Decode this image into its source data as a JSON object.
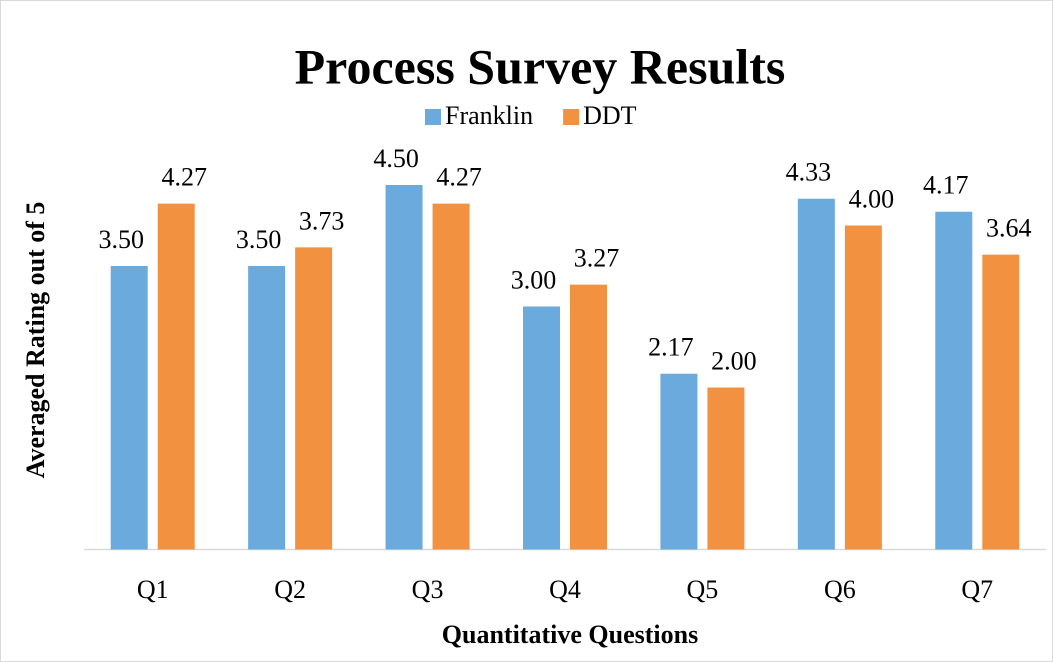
{
  "chart_data": {
    "type": "bar",
    "title": "Process Survey Results",
    "x_label": "Quantitative Questions",
    "y_label": "Averaged Rating out of 5",
    "categories": [
      "Q1",
      "Q2",
      "Q3",
      "Q4",
      "Q5",
      "Q6",
      "Q7"
    ],
    "series": [
      {
        "name": "Franklin",
        "color": "#6aaadc",
        "values": [
          3.5,
          3.5,
          4.5,
          3.0,
          2.17,
          4.33,
          4.17
        ],
        "value_labels": [
          "3.50",
          "3.50",
          "4.50",
          "3.00",
          "2.17",
          "4.33",
          "4.17"
        ]
      },
      {
        "name": "DDT",
        "color": "#f29240",
        "values": [
          4.27,
          3.73,
          4.27,
          3.27,
          2.0,
          4.0,
          3.64
        ],
        "value_labels": [
          "4.27",
          "3.73",
          "4.27",
          "3.27",
          "2.00",
          "4.00",
          "3.64"
        ]
      }
    ],
    "ylim": [
      0,
      5
    ],
    "legend": "top",
    "grid": false
  }
}
